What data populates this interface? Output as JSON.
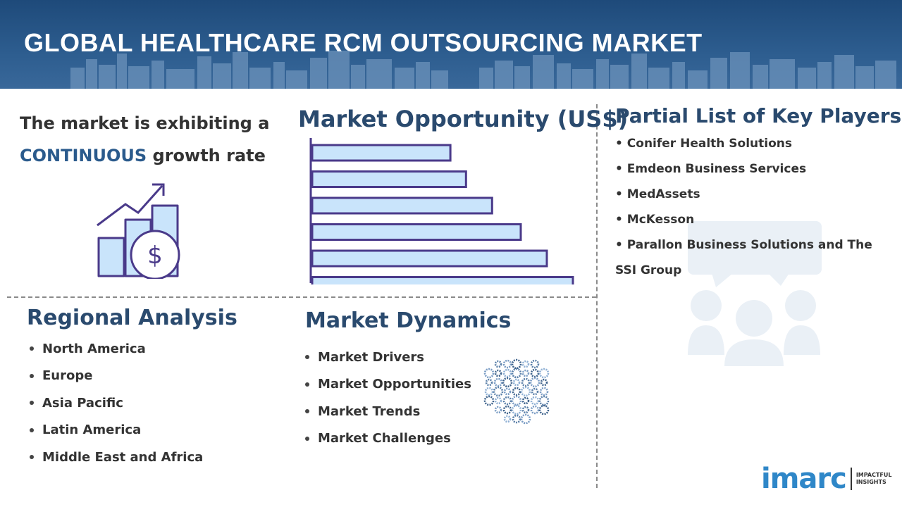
{
  "header": {
    "title": "GLOBAL HEALTHCARE RCM OUTSOURCING MARKET"
  },
  "growth": {
    "line1": "The market is exhibiting a",
    "accent": "CONTINUOUS",
    "line2_rest": " growth rate",
    "icon": "growth-chart-dollar-icon"
  },
  "opportunity": {
    "title": "Market Opportunity (US$)"
  },
  "chart_data": {
    "type": "bar",
    "orientation": "horizontal",
    "title": "Market Opportunity (US$)",
    "categories": [
      "",
      "",
      "",
      "",
      "",
      ""
    ],
    "values": [
      53,
      59,
      69,
      80,
      90,
      100
    ],
    "xlabel": "",
    "ylabel": "",
    "grid": false,
    "bar_fill": "#c9e4fb",
    "bar_stroke": "#4a3a8a"
  },
  "regional": {
    "title": "Regional Analysis",
    "items": [
      "North America",
      "Europe",
      "Asia Pacific",
      "Latin America",
      "Middle East and Africa"
    ]
  },
  "dynamics": {
    "title": "Market Dynamics",
    "items": [
      "Market Drivers",
      "Market Opportunities",
      "Market Trends",
      "Market Challenges"
    ],
    "icon": "gears-sphere-icon"
  },
  "key_players": {
    "title": "Partial List of Key Players",
    "items": [
      "• Conifer Health Solutions",
      "• Emdeon Business Services",
      "• MedAssets",
      "• McKesson",
      "• Parallon Business Solutions and The SSI Group"
    ],
    "icon": "people-chat-icon"
  },
  "logo": {
    "word": "imarc",
    "tag_line1": "IMPACTFUL",
    "tag_line2": "INSIGHTS"
  },
  "colors": {
    "header_bg": "#2d5d8f",
    "accent_blue": "#2a4a6e",
    "light_blue": "#c9e4fb",
    "bar_stroke": "#4a3a8a",
    "logo_blue": "#2f87c8"
  }
}
